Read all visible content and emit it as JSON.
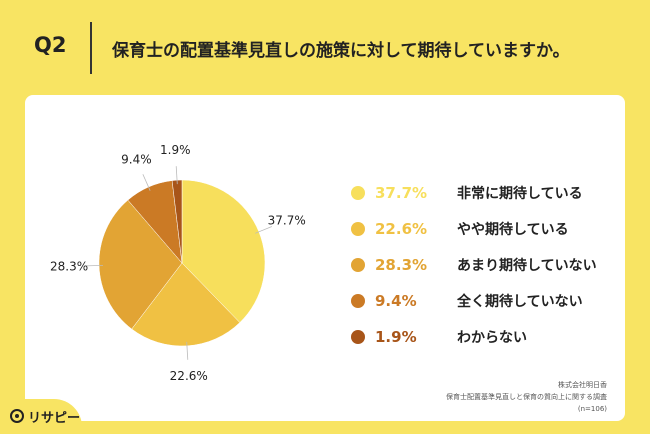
{
  "question": {
    "label": "Q2",
    "title": "保育士の配置基準見直しの施策に対して期待していますか。"
  },
  "chart_data": {
    "type": "pie",
    "categories": [
      "非常に期待している",
      "やや期待している",
      "あまり期待していない",
      "全く期待していない",
      "わからない"
    ],
    "values": [
      37.7,
      22.6,
      28.3,
      9.4,
      1.9
    ],
    "value_labels": [
      "37.7%",
      "22.6%",
      "28.3%",
      "9.4%",
      "1.9%"
    ],
    "colors": [
      "#f7df5c",
      "#f0c143",
      "#e2a434",
      "#cb7a25",
      "#a85519"
    ],
    "legend_placement": "right",
    "start": "12 o'clock, clockwise"
  },
  "source": {
    "line1": "株式会社明日香",
    "line2": "保育士配置基準見直しと保育の質向上に関する調査",
    "line3": "(n=106)"
  },
  "logo": {
    "text": "リサピー"
  }
}
